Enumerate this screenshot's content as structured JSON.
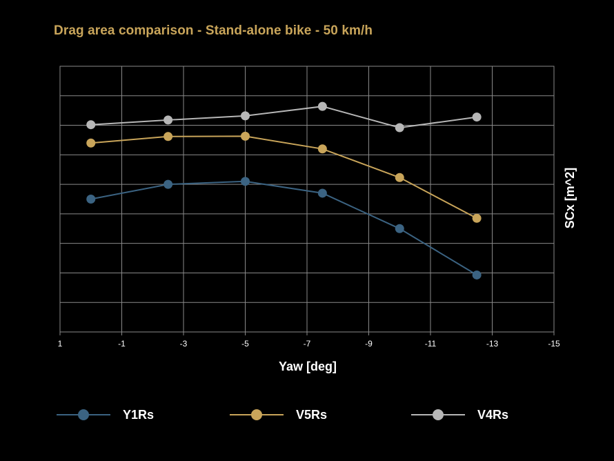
{
  "chart_data": {
    "type": "line",
    "title": "Drag area comparison - Stand-alone bike - 50 km/h",
    "xlabel": "Yaw [deg]",
    "ylabel": "SCx [m^2]",
    "xlim": [
      1,
      -15
    ],
    "xticks": [
      1,
      -1,
      -3,
      -5,
      -7,
      -9,
      -11,
      -13,
      -15
    ],
    "xtick_labels": [
      "1",
      "-1",
      "-3",
      "-5",
      "-7",
      "-9",
      "-11",
      "-13",
      "-15"
    ],
    "ylim": [
      0,
      9
    ],
    "y_gridlines": 9,
    "y_tick_labels_visible": false,
    "grid": true,
    "legend_position": "bottom",
    "x": [
      0,
      -2.5,
      -5,
      -7.5,
      -10,
      -12.5
    ],
    "series": [
      {
        "name": "Y1Rs",
        "color": "#3b6382",
        "values": [
          4.5,
          5.0,
          5.1,
          4.7,
          3.5,
          1.93
        ]
      },
      {
        "name": "V5Rs",
        "color": "#c9a55a",
        "values": [
          6.4,
          6.62,
          6.63,
          6.2,
          5.23,
          3.85
        ]
      },
      {
        "name": "V4Rs",
        "color": "#b7b7b7",
        "values": [
          7.02,
          7.18,
          7.32,
          7.64,
          6.92,
          7.28
        ]
      }
    ]
  }
}
